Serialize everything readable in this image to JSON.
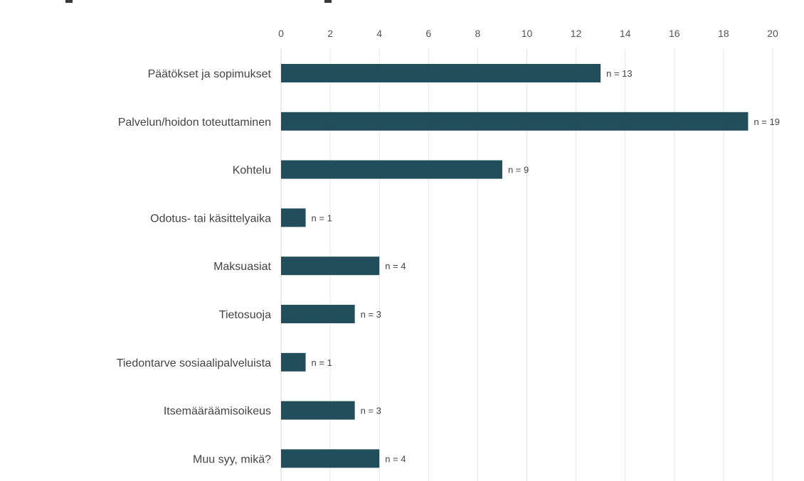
{
  "chart_data": {
    "type": "bar",
    "orientation": "horizontal",
    "categories": [
      "Päätökset ja sopimukset",
      "Palvelun/hoidon toteuttaminen",
      "Kohtelu",
      "Odotus- tai käsittelyaika",
      "Maksuasiat",
      "Tietosuoja",
      "Tiedontarve sosiaalipalveluista",
      "Itsemääräämisoikeus",
      "Muu syy, mikä?"
    ],
    "values": [
      13,
      19,
      9,
      1,
      4,
      3,
      1,
      3,
      4
    ],
    "data_labels": [
      "n = 13",
      "n = 19",
      "n = 9",
      "n = 1",
      "n = 4",
      "n = 3",
      "n = 1",
      "n = 3",
      "n = 4"
    ],
    "xlim": [
      0,
      20
    ],
    "x_ticks": [
      0,
      2,
      4,
      6,
      8,
      10,
      12,
      14,
      16,
      18,
      20
    ],
    "x_axis_position": "top",
    "grid": true,
    "legend": "none",
    "bar_color": "#224e5c",
    "title": "",
    "xlabel": "",
    "ylabel": ""
  }
}
